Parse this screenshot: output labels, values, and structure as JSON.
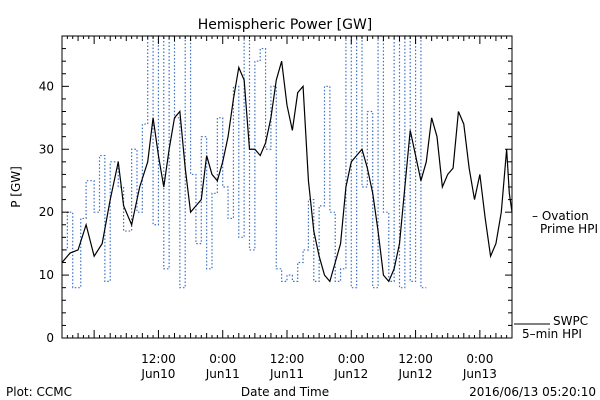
{
  "chart_data": {
    "type": "line",
    "title": "Hemispheric Power [GW]",
    "ylabel": "P [GW]",
    "xlabel": "Date and Time",
    "ylim": [
      0,
      48
    ],
    "xlim": [
      "2016-06-09 18:00",
      "2016-06-13 06:00"
    ],
    "yticks": [
      0,
      10,
      20,
      30,
      40
    ],
    "xticks": [
      {
        "x": "2016-06-10 12:00",
        "label_time": "12:00",
        "label_date": "Jun10"
      },
      {
        "x": "2016-06-11 00:00",
        "label_time": "0:00",
        "label_date": "Jun11"
      },
      {
        "x": "2016-06-11 12:00",
        "label_time": "12:00",
        "label_date": "Jun11"
      },
      {
        "x": "2016-06-12 00:00",
        "label_time": "0:00",
        "label_date": "Jun12"
      },
      {
        "x": "2016-06-12 12:00",
        "label_time": "12:00",
        "label_date": "Jun12"
      },
      {
        "x": "2016-06-13 00:00",
        "label_time": "0:00",
        "label_date": "Jun13"
      }
    ],
    "grid": false,
    "legend_position": "right",
    "series": [
      {
        "name": "Ovation Prime HPI",
        "legend_line1": "– Ovation",
        "legend_line2": "Prime HPI",
        "color": "#3a6fc4",
        "style": "dotted-step",
        "points": [
          [
            "2016-06-09 18:00",
            14
          ],
          [
            "2016-06-09 19:00",
            20
          ],
          [
            "2016-06-09 20:00",
            8
          ],
          [
            "2016-06-09 21:30",
            19
          ],
          [
            "2016-06-09 22:30",
            25
          ],
          [
            "2016-06-10 00:00",
            20
          ],
          [
            "2016-06-10 01:00",
            29
          ],
          [
            "2016-06-10 02:00",
            9
          ],
          [
            "2016-06-10 03:00",
            28
          ],
          [
            "2016-06-10 04:30",
            24
          ],
          [
            "2016-06-10 05:30",
            17
          ],
          [
            "2016-06-10 07:00",
            30
          ],
          [
            "2016-06-10 08:00",
            20
          ],
          [
            "2016-06-10 09:00",
            34
          ],
          [
            "2016-06-10 10:00",
            48
          ],
          [
            "2016-06-10 11:00",
            18
          ],
          [
            "2016-06-10 12:00",
            48
          ],
          [
            "2016-06-10 13:00",
            11
          ],
          [
            "2016-06-10 14:00",
            48
          ],
          [
            "2016-06-10 15:00",
            35
          ],
          [
            "2016-06-10 16:00",
            8
          ],
          [
            "2016-06-10 17:00",
            48
          ],
          [
            "2016-06-10 18:00",
            26
          ],
          [
            "2016-06-10 19:00",
            15
          ],
          [
            "2016-06-10 20:00",
            32
          ],
          [
            "2016-06-10 21:00",
            11
          ],
          [
            "2016-06-10 22:00",
            23
          ],
          [
            "2016-06-10 23:00",
            35
          ],
          [
            "2016-06-11 00:00",
            24
          ],
          [
            "2016-06-11 01:00",
            19
          ],
          [
            "2016-06-11 02:00",
            40
          ],
          [
            "2016-06-11 03:00",
            16
          ],
          [
            "2016-06-11 04:00",
            48
          ],
          [
            "2016-06-11 05:00",
            14
          ],
          [
            "2016-06-11 06:00",
            44
          ],
          [
            "2016-06-11 07:00",
            46
          ],
          [
            "2016-06-11 08:00",
            30
          ],
          [
            "2016-06-11 09:00",
            40
          ],
          [
            "2016-06-11 10:00",
            11
          ],
          [
            "2016-06-11 11:00",
            9
          ],
          [
            "2016-06-11 12:00",
            10
          ],
          [
            "2016-06-11 13:00",
            9
          ],
          [
            "2016-06-11 14:00",
            12
          ],
          [
            "2016-06-11 15:00",
            14
          ],
          [
            "2016-06-11 16:00",
            22
          ],
          [
            "2016-06-11 17:00",
            9
          ],
          [
            "2016-06-11 18:00",
            21
          ],
          [
            "2016-06-11 19:00",
            40
          ],
          [
            "2016-06-11 20:00",
            20
          ],
          [
            "2016-06-11 21:00",
            9
          ],
          [
            "2016-06-11 22:00",
            11
          ],
          [
            "2016-06-11 23:00",
            48
          ],
          [
            "2016-06-12 00:00",
            8
          ],
          [
            "2016-06-12 01:00",
            48
          ],
          [
            "2016-06-12 02:00",
            24
          ],
          [
            "2016-06-12 03:00",
            36
          ],
          [
            "2016-06-12 04:00",
            8
          ],
          [
            "2016-06-12 05:00",
            48
          ],
          [
            "2016-06-12 06:00",
            20
          ],
          [
            "2016-06-12 07:00",
            9
          ],
          [
            "2016-06-12 08:00",
            48
          ],
          [
            "2016-06-12 09:00",
            8
          ],
          [
            "2016-06-12 10:00",
            48
          ],
          [
            "2016-06-12 11:00",
            9
          ],
          [
            "2016-06-12 12:00",
            48
          ],
          [
            "2016-06-12 13:00",
            8
          ],
          [
            "2016-06-12 13:30",
            8
          ],
          [
            "2016-06-12 14:00",
            8
          ]
        ]
      },
      {
        "name": "SWPC 5-min HPI",
        "legend_line1": "SWPC",
        "legend_line2": "5–min HPI",
        "color": "#000000",
        "style": "solid",
        "points": [
          [
            "2016-06-09 18:00",
            12
          ],
          [
            "2016-06-09 19:30",
            13.5
          ],
          [
            "2016-06-09 21:00",
            14
          ],
          [
            "2016-06-09 22:30",
            18
          ],
          [
            "2016-06-10 00:00",
            13
          ],
          [
            "2016-06-10 01:30",
            15
          ],
          [
            "2016-06-10 03:00",
            22
          ],
          [
            "2016-06-10 04:30",
            28
          ],
          [
            "2016-06-10 05:30",
            21
          ],
          [
            "2016-06-10 07:00",
            18
          ],
          [
            "2016-06-10 08:30",
            24
          ],
          [
            "2016-06-10 10:00",
            28
          ],
          [
            "2016-06-10 11:00",
            35
          ],
          [
            "2016-06-10 12:00",
            29
          ],
          [
            "2016-06-10 13:00",
            24
          ],
          [
            "2016-06-10 14:00",
            30
          ],
          [
            "2016-06-10 15:00",
            35
          ],
          [
            "2016-06-10 16:00",
            36
          ],
          [
            "2016-06-10 17:00",
            27
          ],
          [
            "2016-06-10 18:00",
            20
          ],
          [
            "2016-06-10 19:00",
            21
          ],
          [
            "2016-06-10 20:00",
            22
          ],
          [
            "2016-06-10 21:00",
            29
          ],
          [
            "2016-06-10 22:00",
            26
          ],
          [
            "2016-06-10 23:00",
            25
          ],
          [
            "2016-06-11 00:00",
            28
          ],
          [
            "2016-06-11 01:00",
            32
          ],
          [
            "2016-06-11 02:00",
            38
          ],
          [
            "2016-06-11 03:00",
            43
          ],
          [
            "2016-06-11 04:00",
            41
          ],
          [
            "2016-06-11 05:00",
            30
          ],
          [
            "2016-06-11 06:00",
            30
          ],
          [
            "2016-06-11 07:00",
            29
          ],
          [
            "2016-06-11 08:00",
            31
          ],
          [
            "2016-06-11 09:00",
            35
          ],
          [
            "2016-06-11 10:00",
            41
          ],
          [
            "2016-06-11 11:00",
            44
          ],
          [
            "2016-06-11 12:00",
            37
          ],
          [
            "2016-06-11 13:00",
            33
          ],
          [
            "2016-06-11 14:00",
            39
          ],
          [
            "2016-06-11 15:00",
            40
          ],
          [
            "2016-06-11 16:00",
            25
          ],
          [
            "2016-06-11 17:00",
            17
          ],
          [
            "2016-06-11 18:00",
            13
          ],
          [
            "2016-06-11 19:00",
            10
          ],
          [
            "2016-06-11 20:00",
            9
          ],
          [
            "2016-06-11 21:00",
            12
          ],
          [
            "2016-06-11 22:00",
            15
          ],
          [
            "2016-06-11 23:00",
            24
          ],
          [
            "2016-06-12 00:00",
            28
          ],
          [
            "2016-06-12 01:00",
            29
          ],
          [
            "2016-06-12 02:00",
            30
          ],
          [
            "2016-06-12 03:00",
            27
          ],
          [
            "2016-06-12 04:00",
            23
          ],
          [
            "2016-06-12 05:00",
            17
          ],
          [
            "2016-06-12 06:00",
            10
          ],
          [
            "2016-06-12 07:00",
            9
          ],
          [
            "2016-06-12 08:00",
            11
          ],
          [
            "2016-06-12 09:00",
            15
          ],
          [
            "2016-06-12 10:00",
            24
          ],
          [
            "2016-06-12 11:00",
            33
          ],
          [
            "2016-06-12 12:00",
            29
          ],
          [
            "2016-06-12 13:00",
            25
          ],
          [
            "2016-06-12 14:00",
            28
          ],
          [
            "2016-06-12 15:00",
            35
          ],
          [
            "2016-06-12 16:00",
            32
          ],
          [
            "2016-06-12 17:00",
            24
          ],
          [
            "2016-06-12 18:00",
            26
          ],
          [
            "2016-06-12 19:00",
            27
          ],
          [
            "2016-06-12 20:00",
            36
          ],
          [
            "2016-06-12 21:00",
            34
          ],
          [
            "2016-06-12 22:00",
            27
          ],
          [
            "2016-06-12 23:00",
            22
          ],
          [
            "2016-06-13 00:00",
            26
          ],
          [
            "2016-06-13 01:00",
            19
          ],
          [
            "2016-06-13 02:00",
            13
          ],
          [
            "2016-06-13 03:00",
            15
          ],
          [
            "2016-06-13 04:00",
            20
          ],
          [
            "2016-06-13 05:00",
            30
          ],
          [
            "2016-06-13 05:30",
            23
          ],
          [
            "2016-06-13 06:00",
            20
          ]
        ]
      }
    ]
  },
  "footer": {
    "plot_credit": "Plot: CCMC",
    "timestamp": "2016/06/13 05:20:10"
  }
}
